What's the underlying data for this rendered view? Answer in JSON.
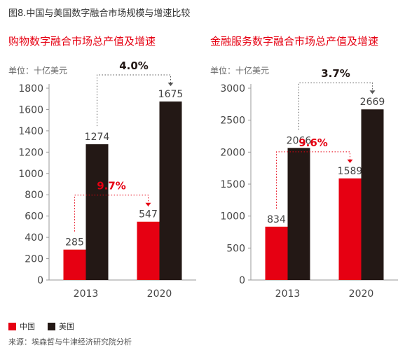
{
  "figure_title": "图8.中国与美国数字融合市场规模与增速比较",
  "legend": [
    {
      "label": "中国",
      "color": "#e60012"
    },
    {
      "label": "美国",
      "color": "#231815"
    }
  ],
  "source": "来源：埃森哲与牛津经济研究院分析",
  "chart_data": [
    {
      "type": "bar",
      "title": "购物数字融合市场总产值及增速",
      "unit_label": "单位：十亿美元",
      "categories": [
        "2013",
        "2020"
      ],
      "ylim": [
        0,
        1800
      ],
      "yticks": [
        0,
        200,
        400,
        600,
        800,
        1000,
        1200,
        1400,
        1600,
        1800
      ],
      "series": [
        {
          "name": "中国",
          "color": "#e60012",
          "values": [
            285,
            547
          ],
          "labels": [
            "285",
            "547"
          ],
          "growth": "9.7%"
        },
        {
          "name": "美国",
          "color": "#231815",
          "values": [
            1274,
            1675
          ],
          "labels": [
            "1274",
            "1675"
          ],
          "growth": "4.0%"
        }
      ]
    },
    {
      "type": "bar",
      "title": "金融服务数字融合市场总产值及增速",
      "unit_label": "单位：十亿美元",
      "categories": [
        "2013",
        "2020"
      ],
      "ylim": [
        0,
        3000
      ],
      "yticks": [
        0,
        500,
        1000,
        1500,
        2000,
        2500,
        3000
      ],
      "series": [
        {
          "name": "中国",
          "color": "#e60012",
          "values": [
            834,
            1589
          ],
          "labels": [
            "834",
            "1589"
          ],
          "growth": "9.6%"
        },
        {
          "name": "美国",
          "color": "#231815",
          "values": [
            2066,
            2669
          ],
          "labels": [
            "2066",
            "2669"
          ],
          "growth": "3.7%"
        }
      ]
    }
  ]
}
